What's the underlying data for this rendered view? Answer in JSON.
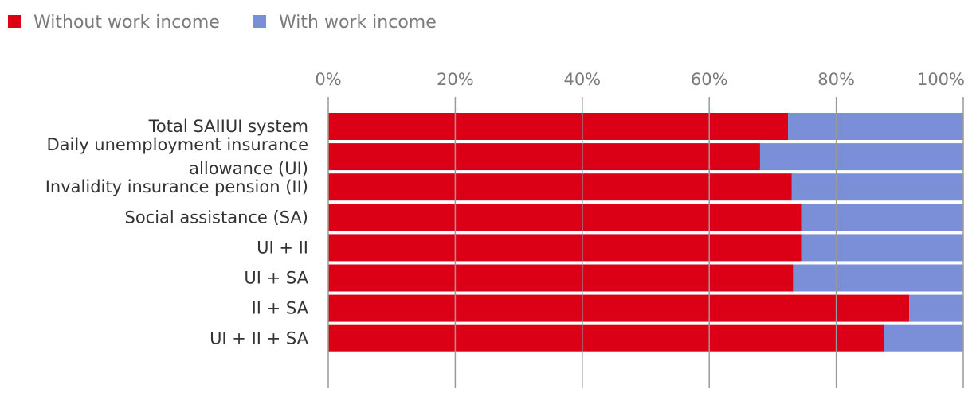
{
  "chart_data": {
    "type": "bar",
    "orientation": "horizontal",
    "stacked": true,
    "categories": [
      [
        "Total SAIIUI system"
      ],
      [
        "Daily unemployment insurance",
        "allowance (UI)"
      ],
      [
        "Invalidity insurance pension (II)"
      ],
      [
        "Social assistance (SA)"
      ],
      [
        "UI + II"
      ],
      [
        "UI + SA"
      ],
      [
        "II + SA"
      ],
      [
        "UI + II + SA"
      ]
    ],
    "series": [
      {
        "name": "Without work income",
        "color": "#dc0017",
        "values": [
          72.4,
          68.0,
          73.0,
          74.5,
          74.5,
          73.2,
          91.5,
          87.5
        ]
      },
      {
        "name": "With work income",
        "color": "#7a8fd8",
        "values": [
          27.6,
          32.0,
          27.0,
          25.5,
          25.5,
          26.8,
          8.5,
          12.5
        ]
      }
    ],
    "xlim": [
      0,
      100
    ],
    "xticks": [
      "0%",
      "20%",
      "40%",
      "60%",
      "80%",
      "100%"
    ],
    "xaxis_position": "top",
    "legend_position": "top-left",
    "grid": true
  }
}
